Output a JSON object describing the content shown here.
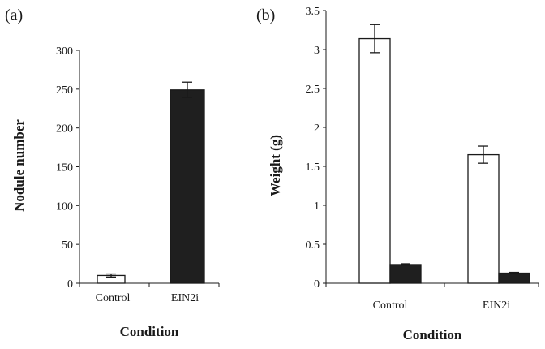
{
  "chart_data": [
    {
      "panel_label": "(a)",
      "type": "bar",
      "categories": [
        "Control",
        "EIN2i"
      ],
      "values": [
        10,
        249
      ],
      "errors": [
        2,
        10
      ],
      "bar_colors": [
        "#ffffff",
        "#1f1f1f"
      ],
      "xlabel": "Condition",
      "ylabel": "Nodule number",
      "ylim": [
        0,
        300
      ],
      "yticks": [
        "0",
        "50",
        "100",
        "150",
        "200",
        "250",
        "300"
      ],
      "grid": false,
      "legend": "none"
    },
    {
      "panel_label": "(b)",
      "type": "bar",
      "categories": [
        "Control",
        "EIN2i"
      ],
      "series": [
        {
          "values": [
            3.14,
            1.65
          ],
          "errors": [
            0.18,
            0.11
          ],
          "color": "#ffffff"
        },
        {
          "values": [
            0.24,
            0.13
          ],
          "errors": [
            0.01,
            0.01
          ],
          "color": "#1f1f1f"
        }
      ],
      "xlabel": "Condition",
      "ylabel": "Weight (g)",
      "ylim": [
        0,
        3.5
      ],
      "yticks": [
        "0",
        "0.5",
        "1",
        "1.5",
        "2",
        "2.5",
        "3",
        "3.5"
      ],
      "grid": false,
      "legend": "none"
    }
  ]
}
